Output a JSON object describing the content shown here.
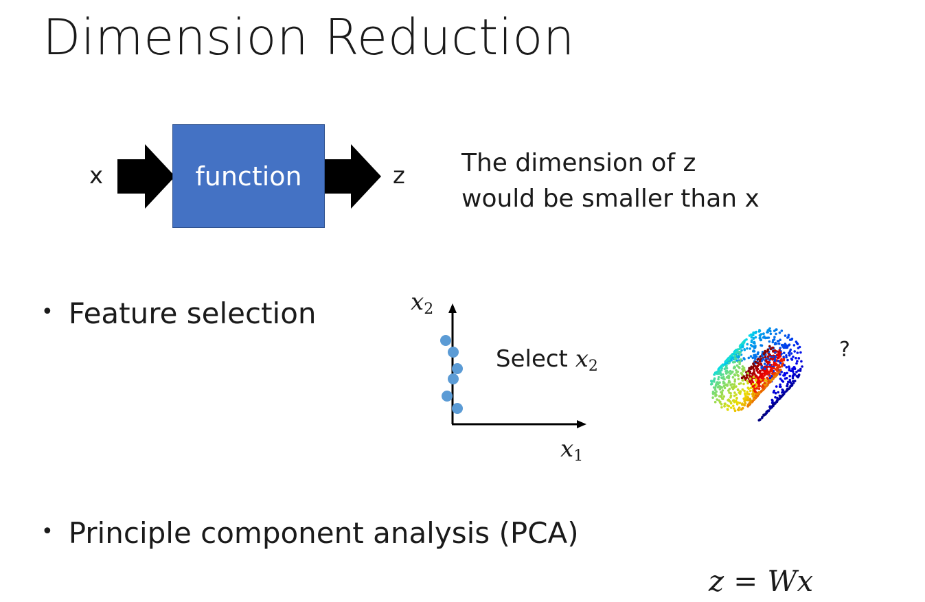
{
  "title": "Dimension Reduction",
  "diagram": {
    "input_label": "x",
    "box_label": "function",
    "output_label": "z",
    "box_color": "#4472c4",
    "arrow_color": "#000000",
    "description_line1": "The dimension of z",
    "description_line2": "would be smaller than x"
  },
  "bullets": [
    {
      "text": "Feature selection"
    },
    {
      "text": "Principle component analysis (PCA)"
    }
  ],
  "feature_plot": {
    "x_axis_var": "x",
    "x_axis_sub": "1",
    "y_axis_var": "x",
    "y_axis_sub": "2",
    "point_color": "#5b9bd5",
    "select_text": "Select ",
    "select_var": "x",
    "select_sub": "2"
  },
  "swiss_roll": {
    "question_mark": "?"
  },
  "formula": {
    "lhs": "z",
    "eq": "=",
    "rhs": "Wx"
  }
}
